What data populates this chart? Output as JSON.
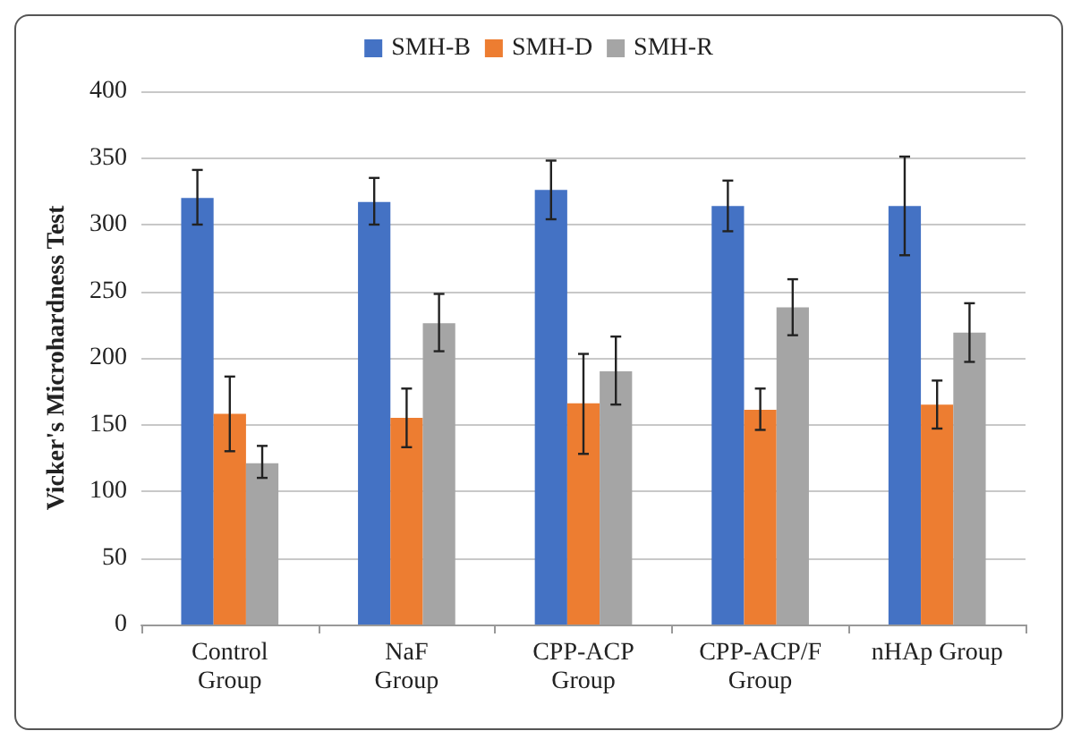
{
  "chart_data": {
    "type": "bar",
    "ylabel": "Vicker's Microhardness Test",
    "categories": [
      "Control\nGroup",
      "NaF\nGroup",
      "CPP-ACP\nGroup",
      "CPP-ACP/F\nGroup",
      "nHAp Group"
    ],
    "series": [
      {
        "name": "SMH-B",
        "color": "#4472c4",
        "values": [
          320,
          317,
          326,
          314,
          314
        ],
        "errors": [
          [
            300,
            341
          ],
          [
            300,
            335
          ],
          [
            304,
            348
          ],
          [
            295,
            333
          ],
          [
            277,
            351
          ]
        ]
      },
      {
        "name": "SMH-D",
        "color": "#ed7d31",
        "values": [
          158,
          155,
          166,
          161,
          165
        ],
        "errors": [
          [
            130,
            186
          ],
          [
            133,
            177
          ],
          [
            128,
            203
          ],
          [
            146,
            177
          ],
          [
            147,
            183
          ]
        ]
      },
      {
        "name": "SMH-R",
        "color": "#a5a5a5",
        "values": [
          121,
          226,
          190,
          238,
          219
        ],
        "errors": [
          [
            110,
            134
          ],
          [
            205,
            248
          ],
          [
            165,
            216
          ],
          [
            217,
            259
          ],
          [
            197,
            241
          ]
        ]
      }
    ],
    "ylim": [
      0,
      400
    ],
    "yticks": [
      0,
      50,
      100,
      150,
      200,
      250,
      300,
      350,
      400
    ],
    "grid": "y",
    "legend": "top"
  }
}
